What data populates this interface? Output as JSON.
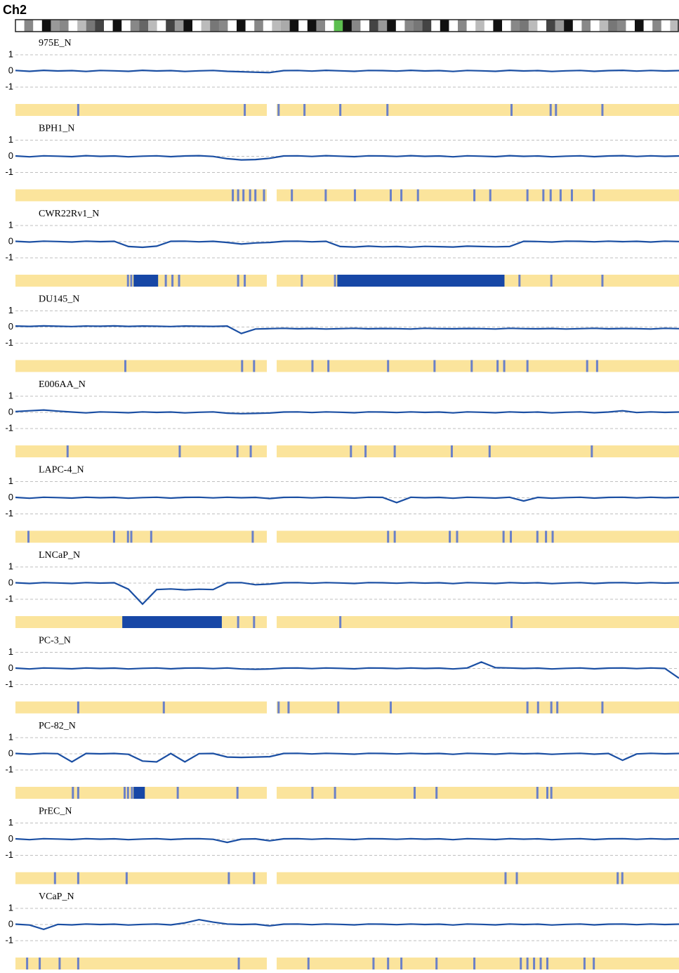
{
  "title": "Ch2",
  "chart_data": [
    {
      "type": "line",
      "title": "975E_N",
      "ylim": [
        -1.35,
        1.35
      ],
      "yticks": [
        1,
        0,
        -1
      ],
      "grid": true,
      "color": "#1b4fa3",
      "values": [
        0.03,
        -0.02,
        0.04,
        0,
        0.02,
        -0.03,
        0.03,
        0.01,
        -0.02,
        0.04,
        0,
        0.02,
        -0.03,
        0.01,
        0.03,
        -0.02,
        -0.05,
        -0.08,
        -0.1,
        0.02,
        0.03,
        -0.01,
        0.04,
        0.01,
        -0.02,
        0.03,
        0.02,
        -0.01,
        0.04,
        0,
        0.02,
        -0.03,
        0.03,
        0.01,
        -0.02,
        0.04,
        0,
        0.02,
        -0.03,
        0.01,
        0.03,
        -0.02,
        0.02,
        0.04,
        -0.01,
        0.03,
        0,
        0.02
      ],
      "marks": [
        9.3,
        34.4,
        39.5,
        43.4,
        48.8,
        55.9,
        74.6,
        80.5,
        81.3,
        88.3
      ],
      "losses": []
    },
    {
      "type": "line",
      "title": "BPH1_N",
      "ylim": [
        -1.35,
        1.35
      ],
      "yticks": [
        1,
        0,
        -1
      ],
      "grid": true,
      "color": "#1b4fa3",
      "values": [
        0.02,
        -0.03,
        0.03,
        0.01,
        -0.02,
        0.04,
        0,
        0.02,
        -0.03,
        0.01,
        0.03,
        -0.02,
        0.02,
        0.04,
        -0.01,
        -0.15,
        -0.22,
        -0.2,
        -0.12,
        0.02,
        0.03,
        -0.01,
        0.04,
        0.01,
        -0.02,
        0.03,
        0.02,
        -0.01,
        0.04,
        0,
        0.02,
        -0.03,
        0.03,
        0.01,
        -0.02,
        0.04,
        0,
        0.02,
        -0.03,
        0.01,
        0.03,
        -0.02,
        0.02,
        0.04,
        -0.01,
        0.03,
        0,
        0.02
      ],
      "marks": [
        32.6,
        33.4,
        34.2,
        35.2,
        36,
        37.3,
        41.5,
        46.6,
        51,
        56.4,
        58,
        60.5,
        69,
        71.4,
        77,
        79.4,
        80.5,
        82,
        83.7,
        87
      ],
      "losses": []
    },
    {
      "type": "line",
      "title": "CWR22Rv1_N",
      "ylim": [
        -1.35,
        1.35
      ],
      "yticks": [
        1,
        0,
        -1
      ],
      "grid": true,
      "color": "#1b4fa3",
      "values": [
        0.02,
        -0.02,
        0.03,
        0.01,
        -0.02,
        0.03,
        0,
        0.02,
        -0.3,
        -0.35,
        -0.28,
        0.02,
        0.03,
        -0.01,
        0.02,
        -0.05,
        -0.15,
        -0.08,
        -0.05,
        0.02,
        0.03,
        -0.01,
        0.02,
        -0.3,
        -0.33,
        -0.28,
        -0.32,
        -0.3,
        -0.34,
        -0.29,
        -0.31,
        -0.33,
        -0.28,
        -0.3,
        -0.32,
        -0.3,
        0.02,
        0.01,
        -0.02,
        0.03,
        0.02,
        -0.01,
        0.03,
        0,
        0.02,
        -0.02,
        0.03,
        0.01
      ],
      "marks": [
        16.8,
        17.3,
        22.5,
        23.5,
        24.5,
        33.4,
        34.4,
        43,
        48,
        75.8,
        80.6,
        88.3
      ],
      "losses": [
        [
          17.8,
          21.5
        ],
        [
          48.5,
          73.7
        ]
      ]
    },
    {
      "type": "line",
      "title": "DU145_N",
      "ylim": [
        -1.35,
        1.35
      ],
      "yticks": [
        1,
        0,
        -1
      ],
      "grid": true,
      "color": "#1b4fa3",
      "values": [
        0.06,
        0.04,
        0.07,
        0.05,
        0.03,
        0.06,
        0.05,
        0.07,
        0.04,
        0.06,
        0.05,
        0.03,
        0.06,
        0.05,
        0.04,
        0.06,
        -0.4,
        -0.12,
        -0.1,
        -0.08,
        -0.11,
        -0.09,
        -0.12,
        -0.1,
        -0.08,
        -0.11,
        -0.09,
        -0.1,
        -0.12,
        -0.08,
        -0.1,
        -0.11,
        -0.09,
        -0.1,
        -0.12,
        -0.08,
        -0.1,
        -0.11,
        -0.09,
        -0.12,
        -0.1,
        -0.08,
        -0.11,
        -0.09,
        -0.1,
        -0.12,
        -0.08,
        -0.1
      ],
      "marks": [
        16.4,
        34,
        35.8,
        44.6,
        47,
        56,
        63,
        68.6,
        72.5,
        73.5,
        77,
        86,
        87.5
      ],
      "losses": []
    },
    {
      "type": "line",
      "title": "E006AA_N",
      "ylim": [
        -1.35,
        1.35
      ],
      "yticks": [
        1,
        0,
        -1
      ],
      "grid": true,
      "color": "#1b4fa3",
      "values": [
        0.05,
        0.1,
        0.15,
        0.08,
        0.02,
        -0.03,
        0.03,
        0.01,
        -0.02,
        0.03,
        0,
        0.02,
        -0.03,
        0.01,
        0.03,
        -0.05,
        -0.08,
        -0.06,
        -0.04,
        0.02,
        0.03,
        -0.01,
        0.03,
        0.01,
        -0.02,
        0.03,
        0.02,
        -0.01,
        0.03,
        0,
        0.02,
        -0.03,
        0.03,
        0.01,
        -0.02,
        0.03,
        0,
        0.02,
        -0.03,
        0.01,
        0.03,
        -0.02,
        0.02,
        0.1,
        -0.01,
        0.03,
        0,
        0.02
      ],
      "marks": [
        7.7,
        24.6,
        33.3,
        35.3,
        50.4,
        52.6,
        57,
        65.6,
        71.3,
        86.7
      ],
      "losses": []
    },
    {
      "type": "line",
      "title": "LAPC-4_N",
      "ylim": [
        -1.35,
        1.35
      ],
      "yticks": [
        1,
        0,
        -1
      ],
      "grid": true,
      "color": "#1b4fa3",
      "values": [
        0.02,
        -0.03,
        0.03,
        0.01,
        -0.02,
        0.03,
        0,
        0.02,
        -0.03,
        0.01,
        0.03,
        -0.02,
        0.02,
        0.03,
        -0.01,
        0.03,
        0,
        0.02,
        -0.05,
        0.02,
        0.03,
        -0.01,
        0.03,
        0.01,
        -0.02,
        0.03,
        0.02,
        -0.3,
        0.03,
        0,
        0.02,
        -0.03,
        0.03,
        0.01,
        -0.02,
        0.03,
        -0.2,
        0.02,
        -0.03,
        0.01,
        0.03,
        -0.02,
        0.02,
        0.03,
        -0.01,
        0.03,
        0,
        0.02
      ],
      "marks": [
        1.8,
        14.7,
        16.8,
        17.3,
        20.3,
        35.6,
        56,
        57,
        65.3,
        66.4,
        73.4,
        74.5,
        78.5,
        79.8,
        80.8
      ],
      "losses": []
    },
    {
      "type": "line",
      "title": "LNCaP_N",
      "ylim": [
        -1.35,
        1.35
      ],
      "yticks": [
        1,
        0,
        -1
      ],
      "grid": true,
      "color": "#1b4fa3",
      "values": [
        0.02,
        -0.02,
        0.03,
        0.01,
        -0.02,
        0.03,
        0,
        0.02,
        -0.38,
        -1.3,
        -0.4,
        -0.36,
        -0.42,
        -0.38,
        -0.4,
        0.02,
        0.03,
        -0.1,
        -0.06,
        0.02,
        0.03,
        -0.01,
        0.03,
        0.01,
        -0.02,
        0.03,
        0.02,
        -0.01,
        0.03,
        0,
        0.02,
        -0.03,
        0.03,
        0.01,
        -0.02,
        0.03,
        0,
        0.02,
        -0.03,
        0.01,
        0.03,
        -0.02,
        0.02,
        0.03,
        -0.01,
        0.03,
        0,
        0.02
      ],
      "marks": [
        33.4,
        35.8,
        48.8,
        74.6
      ],
      "losses": [
        [
          16.1,
          31.1
        ]
      ]
    },
    {
      "type": "line",
      "title": "PC-3_N",
      "ylim": [
        -1.35,
        1.35
      ],
      "yticks": [
        1,
        0,
        -1
      ],
      "grid": true,
      "color": "#1b4fa3",
      "values": [
        0.02,
        -0.03,
        0.03,
        0.01,
        -0.02,
        0.03,
        0,
        0.02,
        -0.03,
        0.01,
        0.03,
        -0.02,
        0.02,
        0.03,
        -0.01,
        0.03,
        -0.03,
        -0.05,
        -0.03,
        0.02,
        0.03,
        -0.01,
        0.03,
        0.01,
        -0.02,
        0.03,
        0.02,
        -0.01,
        0.03,
        0,
        0.02,
        -0.03,
        0.03,
        0.4,
        0.05,
        0.03,
        0,
        0.02,
        -0.03,
        0.01,
        0.03,
        -0.02,
        0.02,
        0.03,
        -0.01,
        0.03,
        0,
        -0.6
      ],
      "marks": [
        9.3,
        22.2,
        39.5,
        41,
        48.5,
        56.4,
        77,
        78.6,
        80.6,
        81.5,
        88.3
      ],
      "losses": []
    },
    {
      "type": "line",
      "title": "PC-82_N",
      "ylim": [
        -1.35,
        1.35
      ],
      "yticks": [
        1,
        0,
        -1
      ],
      "grid": true,
      "color": "#1b4fa3",
      "values": [
        0.02,
        -0.02,
        0.03,
        0.01,
        -0.5,
        0.02,
        0,
        0.02,
        -0.03,
        -0.45,
        -0.5,
        0.02,
        -0.5,
        0.01,
        0.02,
        -0.2,
        -0.22,
        -0.2,
        -0.18,
        0.02,
        0.03,
        -0.01,
        0.03,
        0.01,
        -0.02,
        0.03,
        0.02,
        -0.01,
        0.03,
        0,
        0.02,
        -0.03,
        0.03,
        0.01,
        -0.02,
        0.03,
        0,
        0.02,
        -0.03,
        0.01,
        0.03,
        -0.02,
        0.02,
        -0.4,
        -0.01,
        0.03,
        0,
        0.02
      ],
      "marks": [
        8.5,
        9.3,
        16.3,
        16.8,
        17.4,
        24.3,
        33.3,
        44.6,
        48,
        60,
        63.3,
        78.5,
        80,
        80.6
      ],
      "losses": [
        [
          17.8,
          19.5
        ]
      ]
    },
    {
      "type": "line",
      "title": "PrEC_N",
      "ylim": [
        -1.35,
        1.35
      ],
      "yticks": [
        1,
        0,
        -1
      ],
      "grid": true,
      "color": "#1b4fa3",
      "values": [
        0.02,
        -0.03,
        0.03,
        0.01,
        -0.02,
        0.03,
        0,
        0.02,
        -0.03,
        0.01,
        0.03,
        -0.02,
        0.02,
        0.03,
        -0.01,
        -0.2,
        0,
        0.02,
        -0.1,
        0.02,
        0.03,
        -0.01,
        0.03,
        0.01,
        -0.02,
        0.03,
        0.02,
        -0.01,
        0.03,
        0,
        0.02,
        -0.03,
        0.03,
        0.01,
        -0.02,
        0.03,
        0,
        0.02,
        -0.03,
        0.01,
        0.03,
        -0.02,
        0.02,
        0.03,
        -0.01,
        0.03,
        0,
        0.02
      ],
      "marks": [
        5.8,
        9.3,
        16.6,
        32,
        35.8,
        73.7,
        75.4,
        90.6,
        91.3
      ],
      "losses": []
    },
    {
      "type": "line",
      "title": "VCaP_N",
      "ylim": [
        -1.35,
        1.35
      ],
      "yticks": [
        1,
        0,
        -1
      ],
      "grid": true,
      "color": "#1b4fa3",
      "values": [
        0.02,
        -0.03,
        -0.3,
        0.01,
        -0.02,
        0.03,
        0,
        0.02,
        -0.03,
        0.01,
        0.03,
        -0.02,
        0.1,
        0.3,
        0.15,
        0.03,
        0,
        0.02,
        -0.08,
        0.02,
        0.03,
        -0.01,
        0.03,
        0.01,
        -0.02,
        0.03,
        0.02,
        -0.01,
        0.03,
        0,
        0.02,
        -0.03,
        0.03,
        0.01,
        -0.02,
        0.03,
        0,
        0.02,
        -0.03,
        0.01,
        0.03,
        -0.02,
        0.02,
        0.03,
        -0.01,
        0.03,
        0,
        0.02
      ],
      "marks": [
        1.6,
        3.5,
        6.5,
        9.3,
        33.5,
        44,
        53.8,
        56,
        58,
        63.3,
        69,
        76,
        77,
        78,
        79,
        80,
        85.6,
        87
      ],
      "losses": []
    }
  ]
}
